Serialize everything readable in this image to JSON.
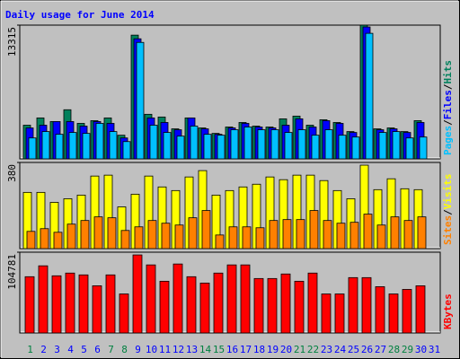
{
  "chart_data": {
    "type": "bar",
    "title": "Daily usage for June 2014",
    "categories": [
      "1",
      "2",
      "3",
      "4",
      "5",
      "6",
      "7",
      "8",
      "9",
      "10",
      "11",
      "12",
      "13",
      "14",
      "15",
      "16",
      "17",
      "18",
      "19",
      "20",
      "21",
      "22",
      "23",
      "24",
      "25",
      "26",
      "27",
      "28",
      "29",
      "30",
      "31"
    ],
    "category_colors": [
      "#008040",
      "#0000ff",
      "#0000ff",
      "#0000ff",
      "#0000ff",
      "#0000ff",
      "#008040",
      "#008040",
      "#0000ff",
      "#0000ff",
      "#0000ff",
      "#0000ff",
      "#0000ff",
      "#008040",
      "#008040",
      "#0000ff",
      "#0000ff",
      "#0000ff",
      "#0000ff",
      "#0000ff",
      "#008040",
      "#008040",
      "#0000ff",
      "#0000ff",
      "#0000ff",
      "#0000ff",
      "#0000ff",
      "#008040",
      "#008040",
      "#0000ff",
      "#0000ff"
    ],
    "separator": "/",
    "panels": [
      {
        "ylim": [
          0,
          13315
        ],
        "yticks": [
          13315
        ],
        "series": [
          {
            "name": "Hits",
            "color": "#00805c",
            "values": [
              3351,
              4076,
              3714,
              4891,
              3533,
              3804,
              4076,
              2355,
              12319,
              4438,
              4167,
              2989,
              4076,
              3080,
              2536,
              3170,
              3623,
              3261,
              3170,
              3985,
              4257,
              3351,
              3895,
              3623,
              2717,
              13315,
              2989,
              3080,
              2717,
              3804,
              null
            ]
          },
          {
            "name": "Files",
            "color": "#0000ff",
            "values": [
              3080,
              3351,
              3714,
              3714,
              3260,
              3714,
              3533,
              2083,
              11957,
              4076,
              3623,
              2899,
              4076,
              2989,
              2446,
              3080,
              3533,
              3170,
              3080,
              3351,
              3985,
              3170,
              3804,
              3533,
              2627,
              13134,
              2899,
              2989,
              2627,
              3623,
              null
            ]
          },
          {
            "name": "Pages",
            "color": "#00c0ff",
            "values": [
              2083,
              2717,
              2446,
              2627,
              2536,
              3533,
              2717,
              1721,
              11595,
              3351,
              2627,
              2265,
              3261,
              2446,
              2355,
              2899,
              3170,
              2899,
              2899,
              2627,
              2899,
              2355,
              2899,
              2355,
              2174,
              12500,
              2627,
              2717,
              2083,
              2174,
              null
            ]
          }
        ]
      },
      {
        "ylim": [
          0,
          380
        ],
        "yticks": [
          380
        ],
        "series": [
          {
            "name": "Visits",
            "color": "#ffff00",
            "values": [
              248,
              248,
              204,
              220,
              236,
              320,
              324,
              184,
              240,
              320,
              272,
              256,
              316,
              344,
              236,
              256,
              272,
              284,
              316,
              304,
              324,
              324,
              300,
              256,
              220,
              368,
              260,
              308,
              264,
              260,
              null
            ]
          },
          {
            "name": "Sites",
            "color": "#ff8000",
            "values": [
              76,
              88,
              72,
              108,
              124,
              140,
              136,
              80,
              96,
              124,
              112,
              104,
              136,
              168,
              60,
              96,
              96,
              92,
              124,
              128,
              128,
              168,
              124,
              112,
              116,
              152,
              104,
              140,
              124,
              140,
              null
            ]
          }
        ]
      },
      {
        "ylim": [
          0,
          104781
        ],
        "yticks": [
          104781
        ],
        "series": [
          {
            "name": "KBytes",
            "color": "#ff0000",
            "values": [
              72994,
              87120,
              74171,
              77701,
              75348,
              61220,
              75348,
              50624,
              101250,
              88298,
              67107,
              89475,
              72994,
              64752,
              77701,
              88298,
              88298,
              70638,
              70638,
              76525,
              67107,
              77701,
              50624,
              50624,
              71816,
              71816,
              60043,
              50624,
              56511,
              61220,
              null
            ]
          }
        ]
      }
    ]
  }
}
